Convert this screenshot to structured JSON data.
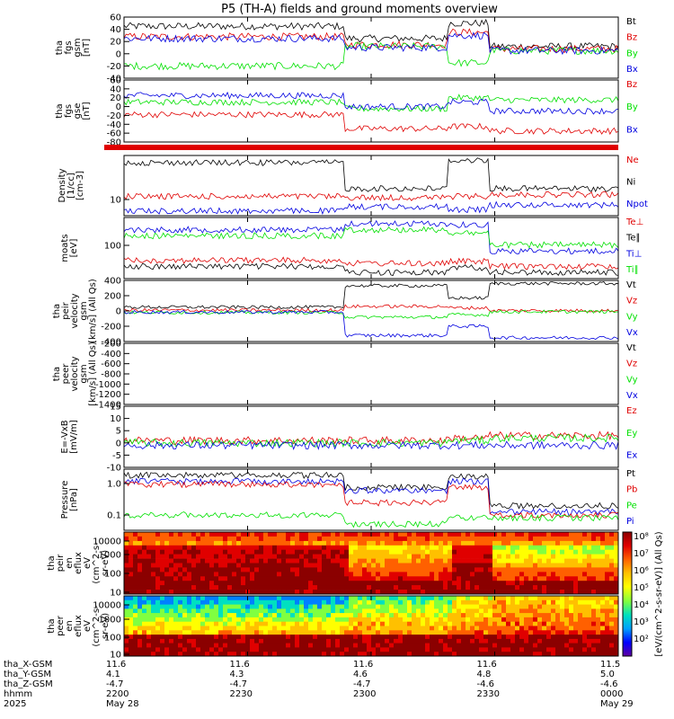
{
  "title": "P5 (TH-A) fields and ground moments overview",
  "colors": {
    "black": "#000000",
    "red": "#e00000",
    "green": "#00e000",
    "blue": "#0000e0"
  },
  "chart_data": [
    {
      "id": "fgs_gsm",
      "type": "line",
      "ylabel": [
        "tha",
        "fgs",
        "gsm",
        "[nT]"
      ],
      "yticks": [
        "60",
        "40",
        "20",
        "0",
        "-20",
        "-40"
      ],
      "ylim": [
        -40,
        60
      ],
      "legend": [
        {
          "name": "Bt",
          "color": "black"
        },
        {
          "name": "Bz",
          "color": "red"
        },
        {
          "name": "By",
          "color": "green"
        },
        {
          "name": "Bx",
          "color": "blue"
        }
      ]
    },
    {
      "id": "fgs_gse",
      "type": "line",
      "ylabel": [
        "tha",
        "fgs",
        "gse",
        "[nT]"
      ],
      "yticks": [
        "60",
        "40",
        "20",
        "0",
        "-20",
        "-40",
        "-60",
        "-80"
      ],
      "ylim": [
        -80,
        60
      ],
      "legend": [
        {
          "name": "Bz",
          "color": "red"
        },
        {
          "name": "By",
          "color": "green"
        },
        {
          "name": "Bx",
          "color": "blue"
        }
      ]
    },
    {
      "id": "density",
      "type": "line",
      "ylabel": [
        "Density",
        "[1/cc]",
        "[cm-3]"
      ],
      "yticks": [
        "10"
      ],
      "log": true,
      "legend": [
        {
          "name": "Ne",
          "color": "red"
        },
        {
          "name": "Ni",
          "color": "black"
        },
        {
          "name": "Npot",
          "color": "blue"
        }
      ]
    },
    {
      "id": "temperature",
      "type": "line",
      "ylabel": [
        "moats",
        "[eV]"
      ],
      "yticks": [
        "100"
      ],
      "log": true,
      "legend": [
        {
          "name": "Te⊥",
          "color": "red"
        },
        {
          "name": "Te∥",
          "color": "black"
        },
        {
          "name": "Ti⊥",
          "color": "blue"
        },
        {
          "name": "Ti∥",
          "color": "green"
        }
      ]
    },
    {
      "id": "peir_velocity",
      "type": "line",
      "ylabel": [
        "tha",
        "peir",
        "velocity",
        "gsm",
        "[km/s] (All Qs)"
      ],
      "yticks": [
        "400",
        "200",
        "0",
        "-200",
        "-400"
      ],
      "ylim": [
        -400,
        400
      ],
      "legend": [
        {
          "name": "Vt",
          "color": "black"
        },
        {
          "name": "Vz",
          "color": "red"
        },
        {
          "name": "Vy",
          "color": "green"
        },
        {
          "name": "Vx",
          "color": "blue"
        }
      ]
    },
    {
      "id": "peer_velocity",
      "type": "line",
      "ylabel": [
        "tha",
        "peer",
        "velocity",
        "gsm",
        "[km/s] (All Qs)"
      ],
      "yticks": [
        "-200",
        "-400",
        "-600",
        "-800",
        "-1000",
        "-1200",
        "-1400"
      ],
      "ylim": [
        -1400,
        -200
      ],
      "legend": [
        {
          "name": "Vt",
          "color": "black"
        },
        {
          "name": "Vz",
          "color": "red"
        },
        {
          "name": "Vy",
          "color": "green"
        },
        {
          "name": "Vx",
          "color": "blue"
        }
      ]
    },
    {
      "id": "efield",
      "type": "line",
      "ylabel": [
        "E=-VxB",
        "[mV/m]"
      ],
      "yticks": [
        "15",
        "10",
        "5",
        "0",
        "-5",
        "-10"
      ],
      "ylim": [
        -10,
        15
      ],
      "legend": [
        {
          "name": "Ez",
          "color": "red"
        },
        {
          "name": "Ey",
          "color": "green"
        },
        {
          "name": "Ex",
          "color": "blue"
        }
      ]
    },
    {
      "id": "pressure",
      "type": "line",
      "ylabel": [
        "Pressure",
        "[nPa]"
      ],
      "yticks": [
        "1.0",
        "0.1"
      ],
      "log": true,
      "legend": [
        {
          "name": "Pt",
          "color": "black"
        },
        {
          "name": "Pb",
          "color": "red"
        },
        {
          "name": "Pe",
          "color": "green"
        },
        {
          "name": "Pi",
          "color": "blue"
        }
      ]
    },
    {
      "id": "peir_spec",
      "type": "heatmap",
      "ylabel": [
        "tha",
        "peir",
        "en",
        "eflux",
        "eV",
        "(cm^2-s-",
        "sr-eV)"
      ],
      "yticks": [
        "10000",
        "1000",
        "100",
        "10"
      ],
      "log": true
    },
    {
      "id": "peer_spec",
      "type": "heatmap",
      "ylabel": [
        "tha",
        "peer",
        "en",
        "eflux",
        "eV",
        "(cm^2-s-",
        "sr-eV)"
      ],
      "yticks": [
        "10000",
        "1000",
        "100",
        "10"
      ],
      "log": true
    }
  ],
  "colorbar": {
    "label": "[eV/(cm^2-s-sr-eV)] (All Qs)",
    "ticks": [
      "10⁸",
      "10⁷",
      "10⁶",
      "10⁵",
      "10⁴",
      "10³",
      "10²"
    ]
  },
  "ephemeris": {
    "rows": [
      {
        "label": "tha_X-GSM",
        "values": [
          "11.6",
          "11.6",
          "11.6",
          "11.6",
          "11.5"
        ]
      },
      {
        "label": "tha_Y-GSM",
        "values": [
          "4.1",
          "4.3",
          "4.6",
          "4.8",
          "5.0"
        ]
      },
      {
        "label": "tha_Z-GSM",
        "values": [
          "-4.7",
          "-4.7",
          "-4.7",
          "-4.6",
          "-4.6"
        ]
      },
      {
        "label": "hhmm",
        "values": [
          "2200",
          "2230",
          "2300",
          "2330",
          "0000"
        ]
      },
      {
        "label": "2025",
        "values": [
          "May 28",
          "",
          "",
          "",
          "May 29"
        ]
      }
    ]
  }
}
